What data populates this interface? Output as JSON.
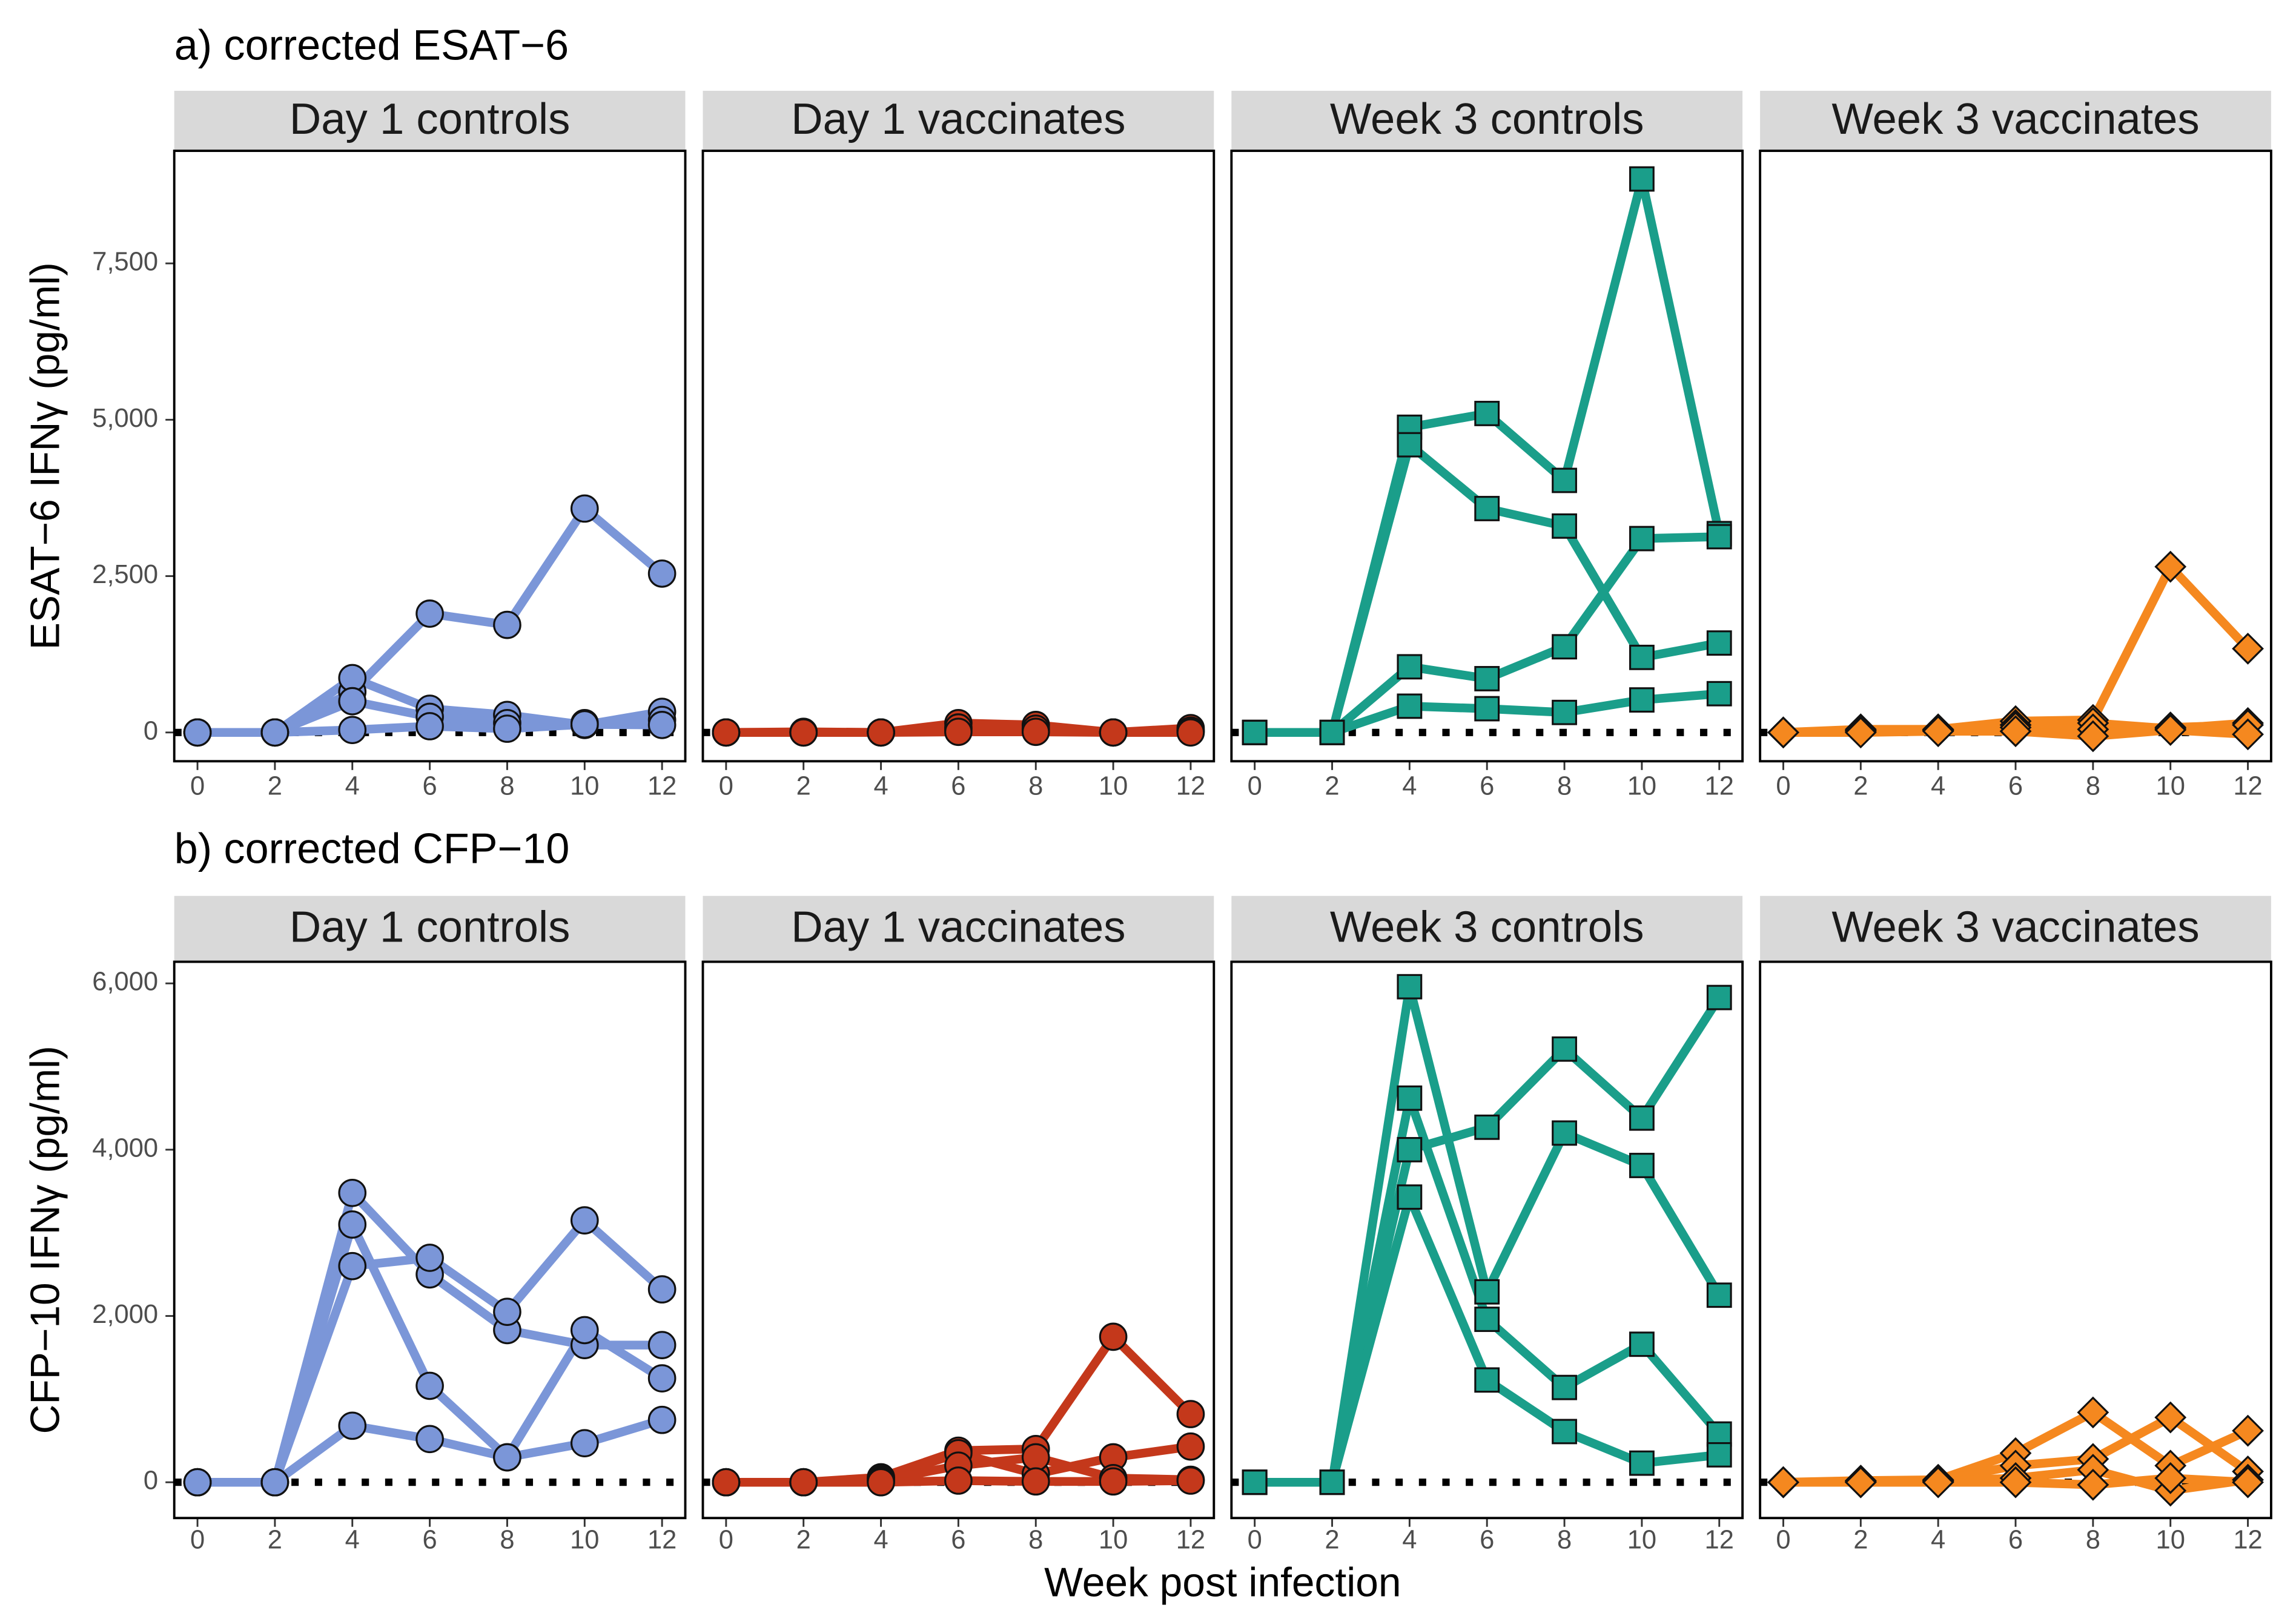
{
  "chart_data": [
    {
      "type": "line",
      "title": "a) corrected ESAT−6",
      "y_label": "ESAT−6 IFNγ (pg/ml)",
      "x": [
        0,
        2,
        4,
        6,
        8,
        10,
        12
      ],
      "xlim": [
        -0.6,
        12.6
      ],
      "xticks": [
        0,
        2,
        4,
        6,
        8,
        10,
        12
      ],
      "ylim": [
        -460,
        9300
      ],
      "yticks": [
        0,
        {
          "value": 2500,
          "label": "2,500"
        },
        {
          "value": 5000,
          "label": "5,000"
        },
        {
          "value": 7500,
          "label": "7,500"
        }
      ],
      "hline": 0,
      "panels": [
        {
          "title": "Day 1 controls",
          "color": "#7b96d8",
          "marker": "circle",
          "series": [
            {
              "values": [
                0,
                0,
                650,
                1900,
                1720,
                3580,
                2540
              ]
            },
            {
              "values": [
                0,
                0,
                870,
                380,
                280,
                120,
                330
              ]
            },
            {
              "values": [
                0,
                0,
                500,
                250,
                150,
                150,
                200
              ]
            },
            {
              "values": [
                0,
                0,
                40,
                100,
                60,
                130,
                120
              ]
            }
          ]
        },
        {
          "title": "Day 1 vaccinates",
          "color": "#c4381b",
          "marker": "circle",
          "series": [
            {
              "values": [
                0,
                0,
                0,
                150,
                120,
                0,
                70
              ]
            },
            {
              "values": [
                0,
                0,
                0,
                50,
                40,
                0,
                30
              ]
            },
            {
              "values": [
                0,
                10,
                0,
                80,
                60,
                0,
                20
              ]
            },
            {
              "values": [
                0,
                0,
                0,
                10,
                10,
                0,
                0
              ]
            }
          ]
        },
        {
          "title": "Week 3 controls",
          "color": "#1a9e8a",
          "marker": "square",
          "series": [
            {
              "values": [
                0,
                0,
                4880,
                5100,
                4030,
                8850,
                3180
              ]
            },
            {
              "values": [
                0,
                0,
                4600,
                3580,
                3300,
                1200,
                1430
              ]
            },
            {
              "values": [
                0,
                0,
                1050,
                860,
                1370,
                3100,
                3130
              ]
            },
            {
              "values": [
                0,
                0,
                420,
                380,
                320,
                520,
                620
              ]
            }
          ]
        },
        {
          "title": "Week 3 vaccinates",
          "color": "#f5881f",
          "marker": "diamond",
          "series": [
            {
              "values": [
                0,
                50,
                50,
                180,
                200,
                2650,
                1340
              ]
            },
            {
              "values": [
                0,
                30,
                40,
                120,
                150,
                60,
                150
              ]
            },
            {
              "values": [
                0,
                20,
                30,
                80,
                50,
                80,
                120
              ]
            },
            {
              "values": [
                0,
                0,
                20,
                20,
                -60,
                40,
                -30
              ]
            }
          ]
        }
      ]
    },
    {
      "type": "line",
      "title": "b) corrected CFP−10",
      "y_label": "CFP−10 IFNγ (pg/ml)",
      "x_label": "Week post infection",
      "x": [
        0,
        2,
        4,
        6,
        8,
        10,
        12
      ],
      "xlim": [
        -0.6,
        12.6
      ],
      "xticks": [
        0,
        2,
        4,
        6,
        8,
        10,
        12
      ],
      "ylim": [
        -430,
        6260
      ],
      "yticks": [
        0,
        {
          "value": 2000,
          "label": "2,000"
        },
        {
          "value": 4000,
          "label": "4,000"
        },
        {
          "value": 6000,
          "label": "6,000"
        }
      ],
      "hline": 0,
      "panels": [
        {
          "title": "Day 1 controls",
          "color": "#7b96d8",
          "marker": "circle",
          "series": [
            {
              "values": [
                0,
                0,
                3480,
                2500,
                1830,
                1650,
                1650
              ]
            },
            {
              "values": [
                0,
                0,
                2600,
                2700,
                2050,
                3150,
                2320
              ]
            },
            {
              "values": [
                0,
                0,
                3100,
                1160,
                300,
                1830,
                1250
              ]
            },
            {
              "values": [
                0,
                0,
                680,
                520,
                300,
                470,
                750
              ]
            }
          ]
        },
        {
          "title": "Day 1 vaccinates",
          "color": "#c4381b",
          "marker": "circle",
          "series": [
            {
              "values": [
                0,
                0,
                60,
                380,
                400,
                1750,
                820
              ]
            },
            {
              "values": [
                0,
                0,
                40,
                350,
                100,
                300,
                430
              ]
            },
            {
              "values": [
                0,
                0,
                20,
                200,
                300,
                50,
                30
              ]
            },
            {
              "values": [
                0,
                0,
                0,
                20,
                10,
                10,
                20
              ]
            }
          ]
        },
        {
          "title": "Week 3 controls",
          "color": "#1a9e8a",
          "marker": "square",
          "series": [
            {
              "values": [
                0,
                0,
                4000,
                4270,
                5210,
                4380,
                5830
              ]
            },
            {
              "values": [
                0,
                0,
                5960,
                2290,
                4200,
                3810,
                2250
              ]
            },
            {
              "values": [
                0,
                0,
                4620,
                1960,
                1140,
                1660,
                580
              ]
            },
            {
              "values": [
                0,
                0,
                3430,
                1230,
                610,
                230,
                330
              ]
            }
          ]
        },
        {
          "title": "Week 3 vaccinates",
          "color": "#f5881f",
          "marker": "diamond",
          "series": [
            {
              "values": [
                0,
                20,
                30,
                350,
                840,
                200,
                620
              ]
            },
            {
              "values": [
                0,
                10,
                20,
                200,
                280,
                780,
                130
              ]
            },
            {
              "values": [
                0,
                0,
                10,
                50,
                150,
                -100,
                30
              ]
            },
            {
              "values": [
                0,
                0,
                0,
                0,
                -30,
                50,
                0
              ]
            }
          ]
        }
      ]
    }
  ]
}
